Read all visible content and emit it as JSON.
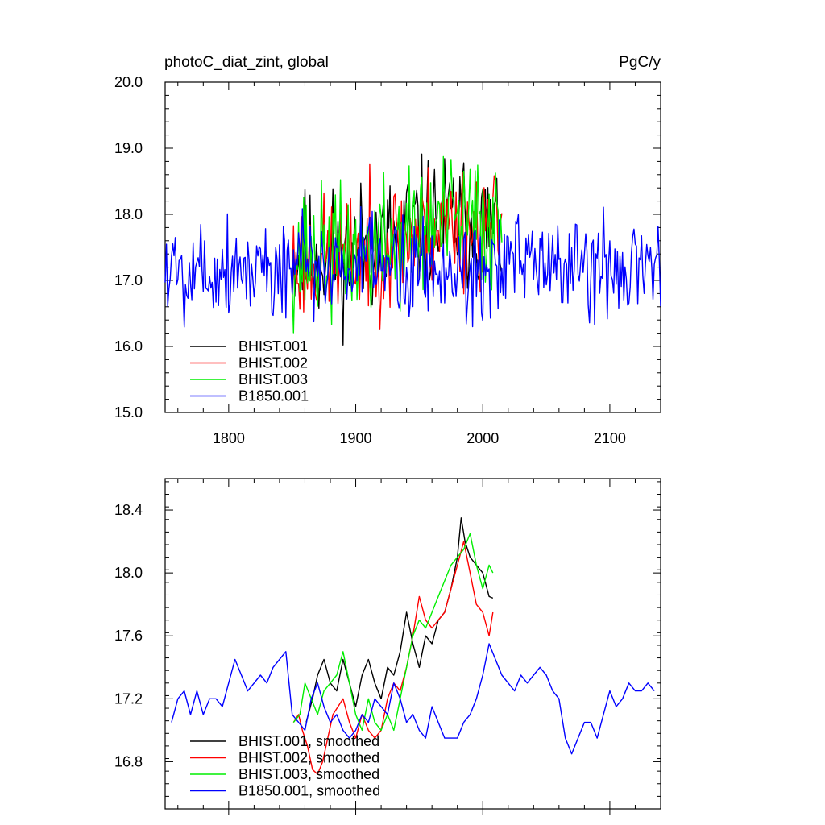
{
  "chart_data": [
    {
      "type": "line",
      "title": "photoC_diat_zint, global",
      "units": "PgC/y",
      "xlim": [
        1750,
        2140
      ],
      "ylim": [
        15.0,
        20.0
      ],
      "xticks": [
        1800,
        1900,
        2000,
        2100
      ],
      "yticks": [
        15.0,
        16.0,
        17.0,
        18.0,
        19.0,
        20.0
      ],
      "ytick_labels": [
        "15.0",
        "16.0",
        "17.0",
        "18.0",
        "19.0",
        "20.0"
      ],
      "xtick_labels": [
        "1800",
        "1900",
        "2000",
        "2100"
      ],
      "legend_position": "bottom-left",
      "series": [
        {
          "name": "BHIST.001",
          "color": "#000000",
          "x_start": 1850,
          "x_end": 2015,
          "mean": 17.4,
          "trend_peak": 1980,
          "amplitude": 0.75,
          "seed": 11
        },
        {
          "name": "BHIST.002",
          "color": "#ff0000",
          "x_start": 1850,
          "x_end": 2015,
          "mean": 17.35,
          "trend_peak": 1980,
          "amplitude": 0.7,
          "seed": 23
        },
        {
          "name": "BHIST.003",
          "color": "#00ee00",
          "x_start": 1850,
          "x_end": 2015,
          "mean": 17.4,
          "trend_peak": 1985,
          "amplitude": 0.75,
          "seed": 37
        },
        {
          "name": "B1850.001",
          "color": "#0000ff",
          "x_start": 1750,
          "x_end": 2140,
          "mean": 17.2,
          "trend_peak": null,
          "amplitude": 0.6,
          "seed": 5
        }
      ]
    },
    {
      "type": "line",
      "xlim": [
        1750,
        2140
      ],
      "ylim": [
        16.5,
        18.6
      ],
      "xticks": [
        1800,
        1900,
        2000,
        2100
      ],
      "yticks": [
        16.8,
        17.2,
        17.6,
        18.0,
        18.4
      ],
      "ytick_labels": [
        "16.8",
        "17.2",
        "17.6",
        "18.0",
        "18.4"
      ],
      "legend_position": "bottom-left",
      "series": [
        {
          "name": "BHIST.001, smoothed",
          "color": "#000000",
          "x": [
            1861,
            1866,
            1870,
            1875,
            1880,
            1885,
            1890,
            1895,
            1900,
            1905,
            1910,
            1915,
            1920,
            1925,
            1930,
            1935,
            1940,
            1945,
            1950,
            1955,
            1960,
            1965,
            1970,
            1975,
            1980,
            1983,
            1986,
            1990,
            1995,
            2000,
            2005,
            2008
          ],
          "y": [
            17.05,
            17.2,
            17.35,
            17.45,
            17.3,
            17.25,
            17.45,
            17.3,
            17.15,
            17.35,
            17.45,
            17.3,
            17.2,
            17.4,
            17.35,
            17.5,
            17.75,
            17.55,
            17.4,
            17.6,
            17.55,
            17.7,
            17.75,
            17.9,
            18.1,
            18.35,
            18.2,
            18.1,
            18.05,
            18.0,
            17.85,
            17.84
          ]
        },
        {
          "name": "BHIST.002, smoothed",
          "color": "#ff0000",
          "x": [
            1851,
            1855,
            1858,
            1862,
            1866,
            1870,
            1874,
            1878,
            1882,
            1886,
            1890,
            1895,
            1900,
            1905,
            1910,
            1915,
            1920,
            1925,
            1930,
            1935,
            1940,
            1945,
            1950,
            1955,
            1960,
            1965,
            1970,
            1975,
            1980,
            1985,
            1990,
            1995,
            2000,
            2005,
            2008
          ],
          "y": [
            17.05,
            17.1,
            17.0,
            16.9,
            16.75,
            16.72,
            16.8,
            16.95,
            17.1,
            17.15,
            17.2,
            17.05,
            16.95,
            17.1,
            17.0,
            16.95,
            17.0,
            17.2,
            17.3,
            17.25,
            17.4,
            17.6,
            17.85,
            17.7,
            17.65,
            17.7,
            17.75,
            17.9,
            18.05,
            18.2,
            18.0,
            17.8,
            17.75,
            17.6,
            17.75
          ]
        },
        {
          "name": "BHIST.003, smoothed",
          "color": "#00ee00",
          "x": [
            1851,
            1856,
            1860,
            1865,
            1870,
            1875,
            1880,
            1885,
            1890,
            1895,
            1900,
            1905,
            1910,
            1915,
            1920,
            1925,
            1930,
            1935,
            1940,
            1945,
            1950,
            1955,
            1960,
            1965,
            1970,
            1975,
            1980,
            1985,
            1990,
            1995,
            2000,
            2005,
            2008
          ],
          "y": [
            17.05,
            17.1,
            17.3,
            17.2,
            17.1,
            17.25,
            17.3,
            17.35,
            17.5,
            17.3,
            17.1,
            17.0,
            17.2,
            17.05,
            17.0,
            17.1,
            17.0,
            17.2,
            17.4,
            17.6,
            17.7,
            17.65,
            17.75,
            17.85,
            17.95,
            18.05,
            18.1,
            18.15,
            18.25,
            18.05,
            17.9,
            18.05,
            18.0
          ]
        },
        {
          "name": "B1850.001, smoothed",
          "color": "#0000ff",
          "x": [
            1755,
            1760,
            1765,
            1770,
            1775,
            1780,
            1785,
            1790,
            1795,
            1800,
            1805,
            1810,
            1815,
            1820,
            1825,
            1830,
            1835,
            1840,
            1845,
            1850,
            1855,
            1860,
            1865,
            1870,
            1875,
            1880,
            1885,
            1890,
            1895,
            1900,
            1905,
            1910,
            1915,
            1920,
            1925,
            1930,
            1935,
            1940,
            1945,
            1950,
            1955,
            1960,
            1965,
            1970,
            1975,
            1980,
            1985,
            1990,
            1995,
            2000,
            2005,
            2010,
            2015,
            2020,
            2025,
            2030,
            2035,
            2040,
            2045,
            2050,
            2055,
            2060,
            2065,
            2070,
            2075,
            2080,
            2085,
            2090,
            2095,
            2100,
            2105,
            2110,
            2115,
            2120,
            2125,
            2130,
            2135
          ],
          "y": [
            17.05,
            17.2,
            17.25,
            17.1,
            17.25,
            17.1,
            17.2,
            17.2,
            17.15,
            17.3,
            17.45,
            17.35,
            17.25,
            17.3,
            17.35,
            17.3,
            17.4,
            17.45,
            17.5,
            17.1,
            17.05,
            17.0,
            17.2,
            17.3,
            17.15,
            17.05,
            17.1,
            17.0,
            16.95,
            17.0,
            17.1,
            17.05,
            17.2,
            17.15,
            17.1,
            17.3,
            17.2,
            17.05,
            17.1,
            17.0,
            16.95,
            17.15,
            17.05,
            16.95,
            16.95,
            16.95,
            17.05,
            17.1,
            17.2,
            17.35,
            17.55,
            17.45,
            17.35,
            17.3,
            17.25,
            17.35,
            17.3,
            17.35,
            17.4,
            17.35,
            17.25,
            17.2,
            16.95,
            16.85,
            16.95,
            17.05,
            17.05,
            16.95,
            17.1,
            17.25,
            17.15,
            17.2,
            17.3,
            17.25,
            17.25,
            17.3,
            17.25
          ]
        }
      ]
    }
  ]
}
